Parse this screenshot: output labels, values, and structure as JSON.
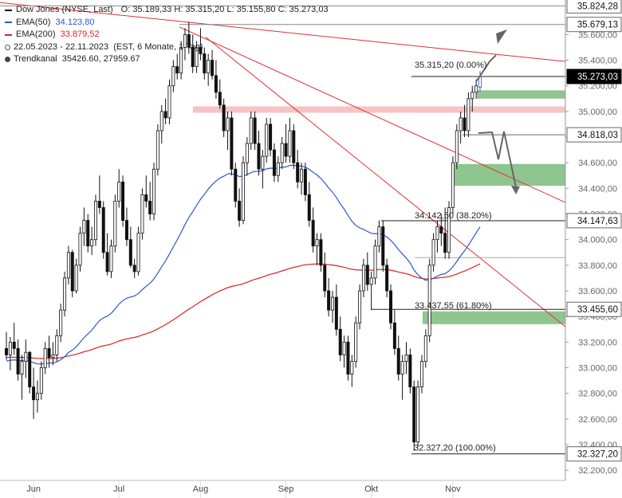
{
  "legend": {
    "instrument": "Dow Jones (NYSE, Last)",
    "ohlc": "O: 35.189,33  H: 35.315,20  L: 35.155,80  C: 35.273,03",
    "ema50_label": "EMA(50)",
    "ema50_value": "34.123,80",
    "ema200_label": "EMA(200)",
    "ema200_value": "33.879,52",
    "range": "22.05.2023 - 22.11.2023",
    "range_info": "(EST, 6 Monate, 1 Tag)",
    "channel_label": "Trendkanal",
    "channel_value": "35426.60, 27959.67"
  },
  "colors": {
    "ema50": "#2f55d4",
    "ema200": "#e02020",
    "trend": "#e23030",
    "zone": "#8fc58f",
    "resistance": "#f6c4c4",
    "candle": "#111111",
    "current": "#000000"
  },
  "chart_data": {
    "type": "candlestick",
    "x_ticks": [
      "Jun",
      "Jul",
      "Aug",
      "Sep",
      "Okt",
      "Nov"
    ],
    "y_ticks": [
      "32.200,00",
      "32.400,00",
      "32.600,00",
      "32.800,00",
      "33.000,00",
      "33.200,00",
      "33.400,00",
      "33.600,00",
      "33.800,00",
      "34.000,00",
      "34.200,00",
      "34.400,00",
      "34.600,00",
      "34.800,00",
      "35.000,00",
      "35.200,00",
      "35.400,00",
      "35.600,00"
    ],
    "ylim": [
      32120,
      35870
    ],
    "price_labels": [
      {
        "value": 35824.28,
        "text": "35.824,28",
        "dark": false
      },
      {
        "value": 35679.13,
        "text": "35.679,13",
        "dark": false
      },
      {
        "value": 35273.03,
        "text": "35.273,03",
        "dark": true
      },
      {
        "value": 34818.03,
        "text": "34.818,03",
        "dark": false
      },
      {
        "value": 34147.63,
        "text": "34.147,63",
        "dark": false
      },
      {
        "value": 33455.6,
        "text": "33.455,60",
        "dark": false
      },
      {
        "value": 32327.2,
        "text": "32.327,20",
        "dark": false
      }
    ],
    "fib_levels": [
      {
        "value": 35315.2,
        "text": "35.315,20 (0.00%)"
      },
      {
        "value": 34142.5,
        "text": "34.142,50 (38.20%)"
      },
      {
        "value": 33437.55,
        "text": "33.437,55 (61.80%)"
      },
      {
        "value": 32327.2,
        "text": "32.327,20 (100.00%)"
      }
    ],
    "candles": [
      [
        33150,
        33280,
        33060,
        33100
      ],
      [
        33100,
        33240,
        32980,
        33200
      ],
      [
        33200,
        33350,
        33100,
        33150
      ],
      [
        33150,
        33220,
        32900,
        32950
      ],
      [
        32950,
        33100,
        32750,
        33050
      ],
      [
        33050,
        33220,
        32920,
        33120
      ],
      [
        33120,
        33130,
        32800,
        32850
      ],
      [
        32850,
        33000,
        32600,
        32750
      ],
      [
        32750,
        32900,
        32650,
        32800
      ],
      [
        32800,
        33050,
        32750,
        33000
      ],
      [
        33000,
        33200,
        32950,
        33150
      ],
      [
        33150,
        33250,
        33000,
        33080
      ],
      [
        33080,
        33200,
        33020,
        33100
      ],
      [
        33100,
        33300,
        33050,
        33250
      ],
      [
        33250,
        33500,
        33200,
        33450
      ],
      [
        33450,
        33750,
        33400,
        33700
      ],
      [
        33700,
        33950,
        33650,
        33900
      ],
      [
        33900,
        33920,
        33550,
        33600
      ],
      [
        33600,
        33850,
        33580,
        33800
      ],
      [
        33800,
        34100,
        33750,
        34050
      ],
      [
        34050,
        34250,
        33950,
        34150
      ],
      [
        34150,
        34200,
        33900,
        33950
      ],
      [
        33950,
        34100,
        33880,
        34000
      ],
      [
        34000,
        34350,
        33950,
        34300
      ],
      [
        34300,
        34500,
        34200,
        34250
      ],
      [
        34250,
        34300,
        33850,
        33900
      ],
      [
        33900,
        34050,
        33720,
        33750
      ],
      [
        33750,
        34000,
        33700,
        33950
      ],
      [
        33950,
        34350,
        33900,
        34300
      ],
      [
        34300,
        34550,
        34250,
        34450
      ],
      [
        34450,
        34500,
        34100,
        34150
      ],
      [
        34150,
        34250,
        33950,
        34000
      ],
      [
        34000,
        34100,
        33780,
        33800
      ],
      [
        33800,
        33850,
        33700,
        33750
      ],
      [
        33750,
        34100,
        33720,
        34050
      ],
      [
        34050,
        34400,
        34000,
        34350
      ],
      [
        34350,
        34500,
        34250,
        34300
      ],
      [
        34300,
        34450,
        34150,
        34200
      ],
      [
        34200,
        34600,
        34150,
        34550
      ],
      [
        34550,
        34900,
        34500,
        34850
      ],
      [
        34850,
        35050,
        34750,
        35000
      ],
      [
        35000,
        35100,
        34900,
        34950
      ],
      [
        34950,
        35250,
        34900,
        35200
      ],
      [
        35200,
        35400,
        35150,
        35350
      ],
      [
        35350,
        35450,
        35250,
        35300
      ],
      [
        35300,
        35550,
        35250,
        35500
      ],
      [
        35500,
        35650,
        35400,
        35600
      ],
      [
        35600,
        35700,
        35450,
        35500
      ],
      [
        35500,
        35600,
        35300,
        35350
      ],
      [
        35350,
        35550,
        35300,
        35500
      ],
      [
        35500,
        35650,
        35400,
        35450
      ],
      [
        35450,
        35500,
        35250,
        35300
      ],
      [
        35300,
        35450,
        35200,
        35400
      ],
      [
        35400,
        35480,
        35250,
        35280
      ],
      [
        35280,
        35400,
        35100,
        35150
      ],
      [
        35150,
        35250,
        35020,
        35050
      ],
      [
        35050,
        35100,
        34800,
        34850
      ],
      [
        34850,
        35000,
        34700,
        34950
      ],
      [
        34950,
        35000,
        34500,
        34550
      ],
      [
        34550,
        34600,
        34250,
        34300
      ],
      [
        34300,
        34400,
        34100,
        34150
      ],
      [
        34150,
        34650,
        34120,
        34600
      ],
      [
        34600,
        34800,
        34500,
        34750
      ],
      [
        34750,
        35000,
        34700,
        34950
      ],
      [
        34950,
        35000,
        34700,
        34750
      ],
      [
        34750,
        34850,
        34500,
        34550
      ],
      [
        34550,
        34700,
        34400,
        34650
      ],
      [
        34650,
        34950,
        34600,
        34900
      ],
      [
        34900,
        34950,
        34650,
        34700
      ],
      [
        34700,
        34750,
        34450,
        34500
      ],
      [
        34500,
        34650,
        34450,
        34600
      ],
      [
        34600,
        34800,
        34550,
        34750
      ],
      [
        34750,
        34900,
        34600,
        34650
      ],
      [
        34650,
        34950,
        34600,
        34850
      ],
      [
        34850,
        34900,
        34550,
        34600
      ],
      [
        34600,
        34700,
        34400,
        34450
      ],
      [
        34450,
        34600,
        34350,
        34550
      ],
      [
        34550,
        34600,
        34300,
        34350
      ],
      [
        34350,
        34450,
        34100,
        34150
      ],
      [
        34150,
        34250,
        33900,
        33950
      ],
      [
        33950,
        34050,
        33800,
        34000
      ],
      [
        34000,
        34050,
        33750,
        33800
      ],
      [
        33800,
        33900,
        33550,
        33600
      ],
      [
        33600,
        33700,
        33400,
        33450
      ],
      [
        33450,
        33600,
        33350,
        33550
      ],
      [
        33550,
        33650,
        33250,
        33300
      ],
      [
        33300,
        33400,
        33050,
        33100
      ],
      [
        33100,
        33250,
        33000,
        33200
      ],
      [
        33200,
        33250,
        32900,
        32950
      ],
      [
        32950,
        33100,
        32850,
        33050
      ],
      [
        33050,
        33400,
        33000,
        33350
      ],
      [
        33350,
        33650,
        33300,
        33600
      ],
      [
        33600,
        33850,
        33550,
        33800
      ],
      [
        33800,
        33900,
        33600,
        33650
      ],
      [
        33650,
        33750,
        33450,
        33700
      ],
      [
        33700,
        34000,
        33650,
        33950
      ],
      [
        33950,
        34150,
        33900,
        34100
      ],
      [
        34100,
        34150,
        33750,
        33800
      ],
      [
        33800,
        33850,
        33550,
        33600
      ],
      [
        33600,
        33650,
        33300,
        33350
      ],
      [
        33350,
        33450,
        33100,
        33150
      ],
      [
        33150,
        33250,
        32900,
        32950
      ],
      [
        32950,
        33100,
        32750,
        33050
      ],
      [
        33050,
        33200,
        32950,
        33100
      ],
      [
        33100,
        33150,
        32800,
        32850
      ],
      [
        32850,
        32900,
        32350,
        32420
      ],
      [
        32420,
        32900,
        32380,
        32850
      ],
      [
        32850,
        33100,
        32800,
        33050
      ],
      [
        33050,
        33300,
        33000,
        33250
      ],
      [
        33250,
        33850,
        33200,
        33800
      ],
      [
        33800,
        34050,
        33750,
        34000
      ],
      [
        34000,
        34150,
        33900,
        34100
      ],
      [
        34100,
        34200,
        33950,
        34050
      ],
      [
        34050,
        34250,
        33850,
        33900
      ],
      [
        33900,
        34300,
        33850,
        34250
      ],
      [
        34250,
        34650,
        34200,
        34600
      ],
      [
        34600,
        34900,
        34550,
        34850
      ],
      [
        34850,
        35000,
        34750,
        34950
      ],
      [
        34950,
        35050,
        34800,
        34850
      ],
      [
        34850,
        35150,
        34800,
        35100
      ],
      [
        35100,
        35200,
        35000,
        35150
      ],
      [
        35150,
        35250,
        35100,
        35200
      ],
      [
        35189.33,
        35315.2,
        35155.8,
        35273.03
      ]
    ]
  }
}
